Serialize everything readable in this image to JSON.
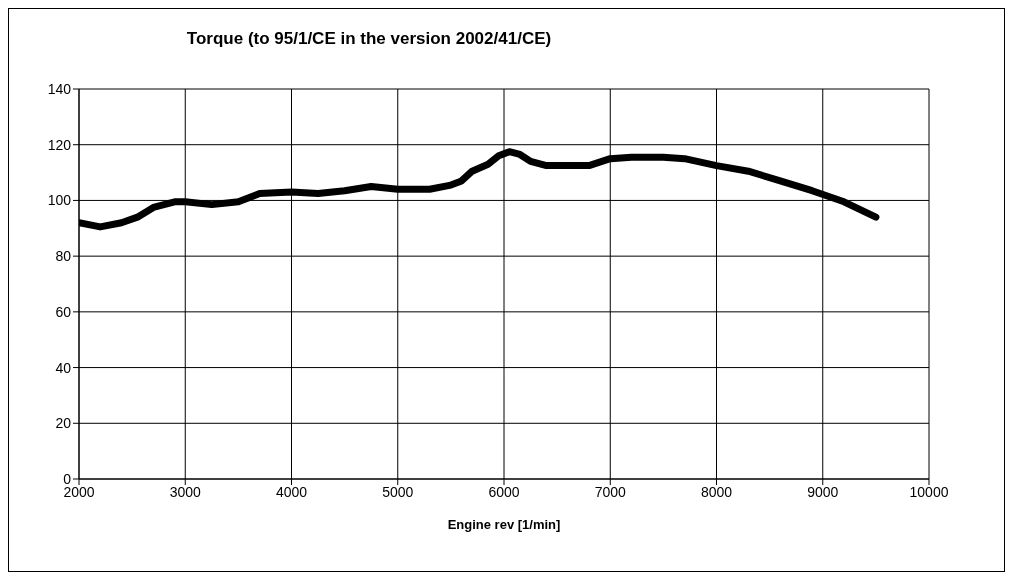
{
  "chart_data": {
    "type": "line",
    "title": "Torque (to 95/1/CE in the version 2002/41/CE)",
    "xlabel": "Engine rev [1/min]",
    "x": [
      2000,
      2200,
      2400,
      2550,
      2700,
      2900,
      3000,
      3250,
      3500,
      3700,
      4000,
      4250,
      4500,
      4750,
      5000,
      5300,
      5500,
      5600,
      5700,
      5850,
      5950,
      6050,
      6150,
      6250,
      6400,
      6600,
      6800,
      7000,
      7200,
      7500,
      7700,
      8000,
      8300,
      8600,
      8900,
      9200,
      9500
    ],
    "series": [
      {
        "color": "#000000",
        "values": [
          92,
          90.5,
          92,
          94,
          97.5,
          99.5,
          99.5,
          98.5,
          99.5,
          102.5,
          103,
          102.5,
          103.5,
          105,
          104,
          104,
          105.5,
          107,
          110.5,
          113,
          116,
          117.5,
          116.5,
          114,
          112.5,
          112.5,
          112.5,
          115,
          115.5,
          115.5,
          115,
          112.5,
          110.5,
          107,
          103.5,
          99.5,
          94
        ]
      }
    ],
    "xlim": [
      2000,
      10000
    ],
    "xticks": [
      2000,
      3000,
      4000,
      5000,
      6000,
      7000,
      8000,
      9000,
      10000
    ],
    "ylim": [
      0,
      140
    ],
    "yticks": [
      0,
      20,
      40,
      60,
      80,
      100,
      120,
      140
    ],
    "grid": true,
    "legend": false,
    "marker": "none",
    "line_style": "solid"
  }
}
